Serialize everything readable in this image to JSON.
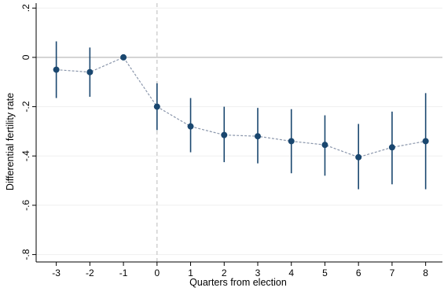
{
  "chart_data": {
    "type": "scatter",
    "title": "",
    "xlabel": "Quarters from election",
    "ylabel": "Differential fertility rate",
    "xlim": [
      -3.6,
      8.5
    ],
    "ylim": [
      -0.83,
      0.22
    ],
    "x_ticks": [
      -3,
      -2,
      -1,
      0,
      1,
      2,
      3,
      4,
      5,
      6,
      7,
      8
    ],
    "x_tick_labels": [
      "-3",
      "-2",
      "-1",
      "0",
      "1",
      "2",
      "3",
      "4",
      "5",
      "6",
      "7",
      "8"
    ],
    "y_ticks": [
      0.2,
      0,
      -0.2,
      -0.4,
      -0.6,
      -0.8
    ],
    "y_tick_labels": [
      ".2",
      "0",
      "-.2",
      "-.4",
      "-.6",
      "-.8"
    ],
    "grid": "horizontal",
    "reference_lines": {
      "y": 0,
      "x": 0
    },
    "series": [
      {
        "x": [
          -3,
          -2,
          -1,
          0,
          1,
          2,
          3,
          4,
          5,
          6,
          7,
          8
        ],
        "y": [
          -0.05,
          -0.06,
          0.0,
          -0.2,
          -0.28,
          -0.315,
          -0.32,
          -0.34,
          -0.355,
          -0.405,
          -0.365,
          -0.34
        ],
        "ci_low": [
          -0.165,
          -0.16,
          0.0,
          -0.295,
          -0.385,
          -0.425,
          -0.43,
          -0.47,
          -0.48,
          -0.535,
          -0.515,
          -0.535
        ],
        "ci_high": [
          0.065,
          0.04,
          0.0,
          -0.105,
          -0.165,
          -0.2,
          -0.205,
          -0.21,
          -0.235,
          -0.27,
          -0.22,
          -0.145
        ]
      }
    ],
    "colors": {
      "marker": "#1a476f",
      "connector": "#8a96ab",
      "zero_line": "#b3b3b3",
      "vline": "#c6c6c6",
      "grid": "#efefef"
    }
  }
}
